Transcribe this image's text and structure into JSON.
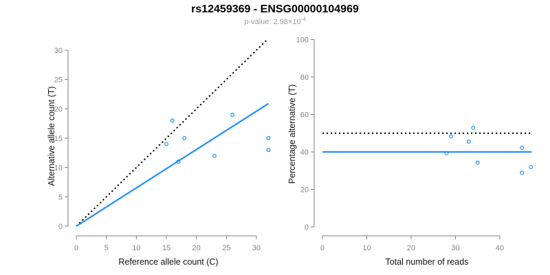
{
  "header": {
    "title": "rs12459369 - ENSG00000104969",
    "subtitle_prefix": "p-value: 2.98×10",
    "subtitle_exponent": "-4"
  },
  "colors": {
    "accent_blue": "#1E90FF",
    "line_black": "#000000",
    "axis_gray": "#7d7d7d",
    "tick_text_gray": "#878787",
    "subtitle_gray": "#9b9b9b"
  },
  "chart_data": [
    {
      "type": "scatter",
      "panel": "allele-counts",
      "xlabel": "Reference allele count (C)",
      "ylabel": "Alternative allele count (T)",
      "xlim": [
        0,
        32.5
      ],
      "ylim": [
        0,
        32.5
      ],
      "xticks": [
        0,
        5,
        10,
        15,
        20,
        25,
        30
      ],
      "yticks": [
        0,
        5,
        10,
        15,
        20,
        25,
        30
      ],
      "grid": false,
      "legend": null,
      "points": [
        [
          15,
          14
        ],
        [
          16,
          18
        ],
        [
          17,
          11
        ],
        [
          18,
          15
        ],
        [
          23,
          12
        ],
        [
          26,
          19
        ],
        [
          32,
          13
        ],
        [
          32,
          15
        ]
      ],
      "lines": [
        {
          "name": "expected-heterozygous-line",
          "style": "dotted",
          "color": "#000000",
          "from": [
            0,
            0
          ],
          "to": [
            31.9,
            31.9
          ]
        },
        {
          "name": "fitted-allelic-ratio-line",
          "style": "solid",
          "color": "#1E90FF",
          "from": [
            0,
            0
          ],
          "to": [
            32,
            20.9
          ]
        }
      ]
    },
    {
      "type": "scatter",
      "panel": "percentage-vs-reads",
      "xlabel": "Total number of reads",
      "ylabel": "Percentage alternative (T)",
      "xlim": [
        0,
        48
      ],
      "ylim": [
        0,
        100
      ],
      "xticks": [
        0,
        10,
        20,
        30,
        40
      ],
      "yticks": [
        0,
        20,
        40,
        60,
        80,
        100
      ],
      "grid": false,
      "legend": null,
      "points": [
        [
          28,
          39.3
        ],
        [
          29,
          48.3
        ],
        [
          33,
          45.5
        ],
        [
          34,
          52.9
        ],
        [
          35,
          34.3
        ],
        [
          45,
          28.9
        ],
        [
          45,
          42.2
        ],
        [
          47,
          31.9
        ]
      ],
      "lines": [
        {
          "name": "expected-50-percent-line",
          "style": "dotted",
          "color": "#000000",
          "from": [
            0,
            50
          ],
          "to": [
            47.2,
            50
          ]
        },
        {
          "name": "mean-percentage-line",
          "style": "solid",
          "color": "#1E90FF",
          "from": [
            0,
            40
          ],
          "to": [
            47.2,
            40
          ]
        }
      ]
    }
  ]
}
